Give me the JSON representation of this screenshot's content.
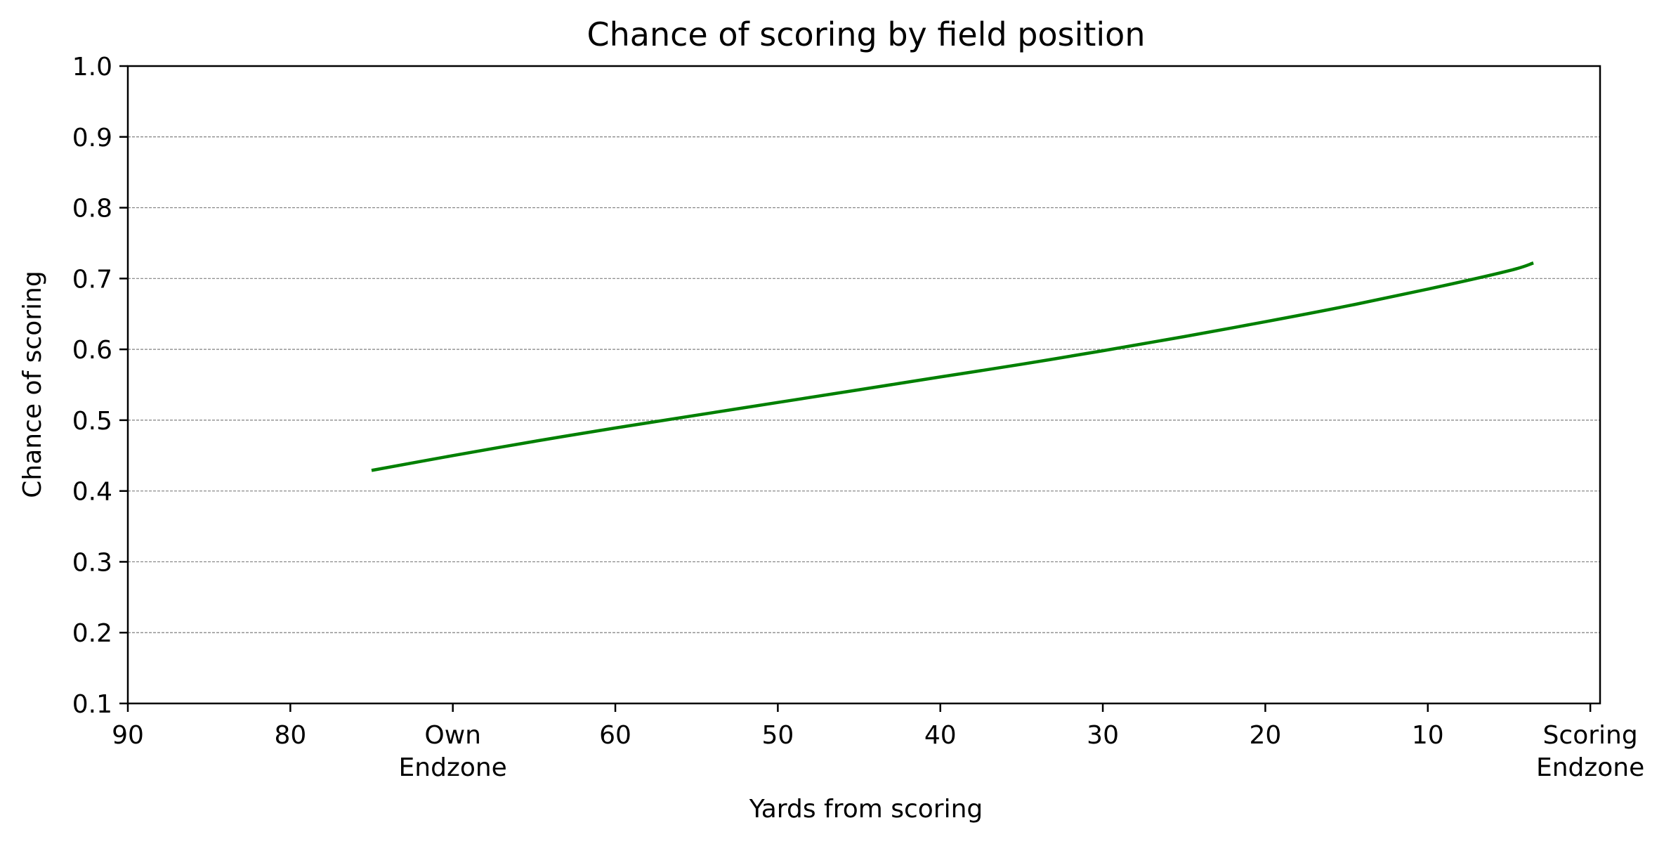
{
  "chart_data": {
    "type": "line",
    "title": "Chance of scoring by field position",
    "xlabel": "Yards from scoring",
    "ylabel": "Chance of scoring",
    "xlim": [
      90,
      -0.6
    ],
    "ylim": [
      0.1,
      1.0
    ],
    "x_axis_reversed": true,
    "grid": "horizontal dashed",
    "xticks": [
      {
        "value": 90,
        "label": "90"
      },
      {
        "value": 80,
        "label": "80"
      },
      {
        "value": 70,
        "label": "Own\nEndzone"
      },
      {
        "value": 60,
        "label": "60"
      },
      {
        "value": 50,
        "label": "50"
      },
      {
        "value": 40,
        "label": "40"
      },
      {
        "value": 30,
        "label": "30"
      },
      {
        "value": 20,
        "label": "20"
      },
      {
        "value": 10,
        "label": "10"
      },
      {
        "value": 0,
        "label": "Scoring\nEndzone"
      }
    ],
    "yticks": [
      {
        "value": 0.1,
        "label": "0.1"
      },
      {
        "value": 0.2,
        "label": "0.2"
      },
      {
        "value": 0.3,
        "label": "0.3"
      },
      {
        "value": 0.4,
        "label": "0.4"
      },
      {
        "value": 0.5,
        "label": "0.5"
      },
      {
        "value": 0.6,
        "label": "0.6"
      },
      {
        "value": 0.7,
        "label": "0.7"
      },
      {
        "value": 0.8,
        "label": "0.8"
      },
      {
        "value": 0.9,
        "label": "0.9"
      },
      {
        "value": 1.0,
        "label": "1.0"
      }
    ],
    "series": [
      {
        "color": "#008000",
        "x": [
          75,
          70,
          65,
          60,
          55,
          50,
          45,
          40,
          35,
          30,
          25,
          20,
          15,
          10,
          5,
          3.5
        ],
        "y": [
          0.429,
          0.45,
          0.47,
          0.489,
          0.507,
          0.525,
          0.543,
          0.561,
          0.579,
          0.598,
          0.618,
          0.639,
          0.661,
          0.685,
          0.711,
          0.722
        ]
      }
    ]
  }
}
